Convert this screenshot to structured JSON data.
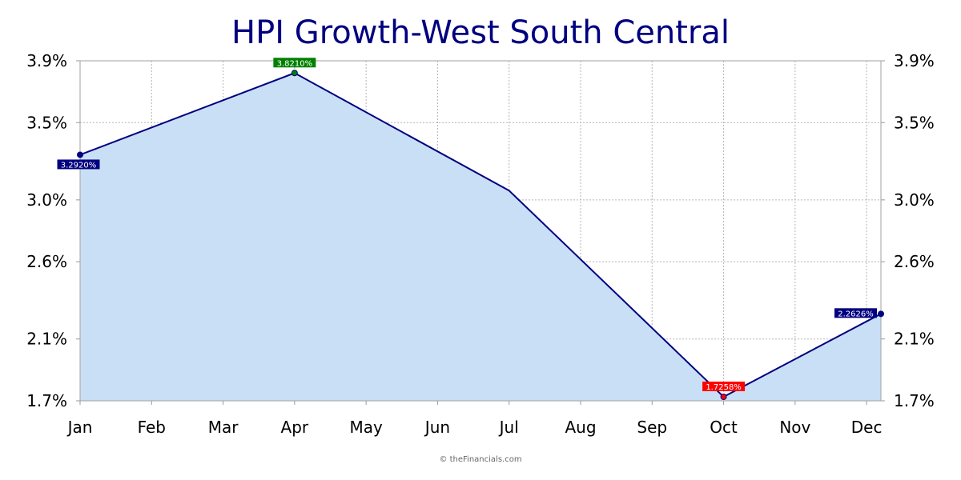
{
  "chart_data": {
    "type": "area",
    "title": "HPI Growth-West South Central",
    "xlabel": "",
    "ylabel": "",
    "categories": [
      "Jan",
      "Feb",
      "Mar",
      "Apr",
      "May",
      "Jun",
      "Jul",
      "Aug",
      "Sep",
      "Oct",
      "Nov",
      "Dec"
    ],
    "x": [
      1,
      4,
      7,
      10,
      12.2
    ],
    "x_labels": [
      "Jan",
      "Apr",
      "Jul",
      "Oct",
      "Dec"
    ],
    "series": [
      {
        "values": [
          3.292,
          3.821,
          3.06,
          1.7258,
          2.2626
        ],
        "color": "#000080",
        "fill": "#c9dff5"
      }
    ],
    "data_labels": [
      {
        "index": 0,
        "text": "3.2920%",
        "bg": "#000080",
        "position": "below"
      },
      {
        "index": 1,
        "text": "3.8210%",
        "bg": "#008000",
        "position": "above"
      },
      {
        "index": 3,
        "text": "1.7258%",
        "bg": "#ff0000",
        "position": "above"
      },
      {
        "index": 4,
        "text": "2.2626%",
        "bg": "#000080",
        "position": "left"
      }
    ],
    "yticks": [
      1.7,
      2.1,
      2.6,
      3.0,
      3.5,
      3.9
    ],
    "ytick_labels": [
      "1.7%",
      "2.1%",
      "2.6%",
      "3.0%",
      "3.5%",
      "3.9%"
    ],
    "ylim": [
      1.7,
      3.9
    ],
    "xlim": [
      1,
      12.2
    ],
    "grid": true,
    "dual_y_axis": true
  },
  "credit": "© theFinancials.com"
}
